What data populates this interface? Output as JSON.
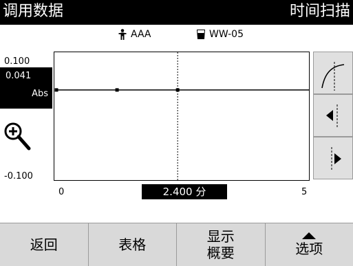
{
  "header": {
    "left_title": "调用数据",
    "right_title": "时间扫描"
  },
  "info": {
    "user_icon": "person-icon",
    "user_label": "AAA",
    "sample_icon": "beaker-icon",
    "sample_label": "WW-05"
  },
  "chart": {
    "y_max_label": "0.100",
    "y_min_label": "-0.100",
    "current_value": "0.041",
    "unit": "Abs",
    "x_start_label": "0",
    "x_end_label": "5",
    "cursor_label": "2.400 分"
  },
  "side_buttons": {
    "curve_icon": "curve-fit-icon",
    "prev_icon": "cursor-left-icon",
    "next_icon": "cursor-right-icon",
    "zoom_icon": "zoom-in-icon"
  },
  "footer": {
    "back_label": "返回",
    "table_label": "表格",
    "summary_line1": "显示",
    "summary_line2": "概要",
    "options_label": "选项"
  },
  "chart_data": {
    "type": "line",
    "x": [
      0,
      1.2,
      2.4,
      5
    ],
    "series": [
      {
        "values": [
          0.041,
          0.041,
          0.041,
          0.041
        ]
      }
    ],
    "xlim": [
      0,
      5
    ],
    "ylim": [
      -0.1,
      0.1
    ],
    "cursor_x": 2.4,
    "markers_x": [
      0,
      1.2,
      2.4
    ]
  }
}
